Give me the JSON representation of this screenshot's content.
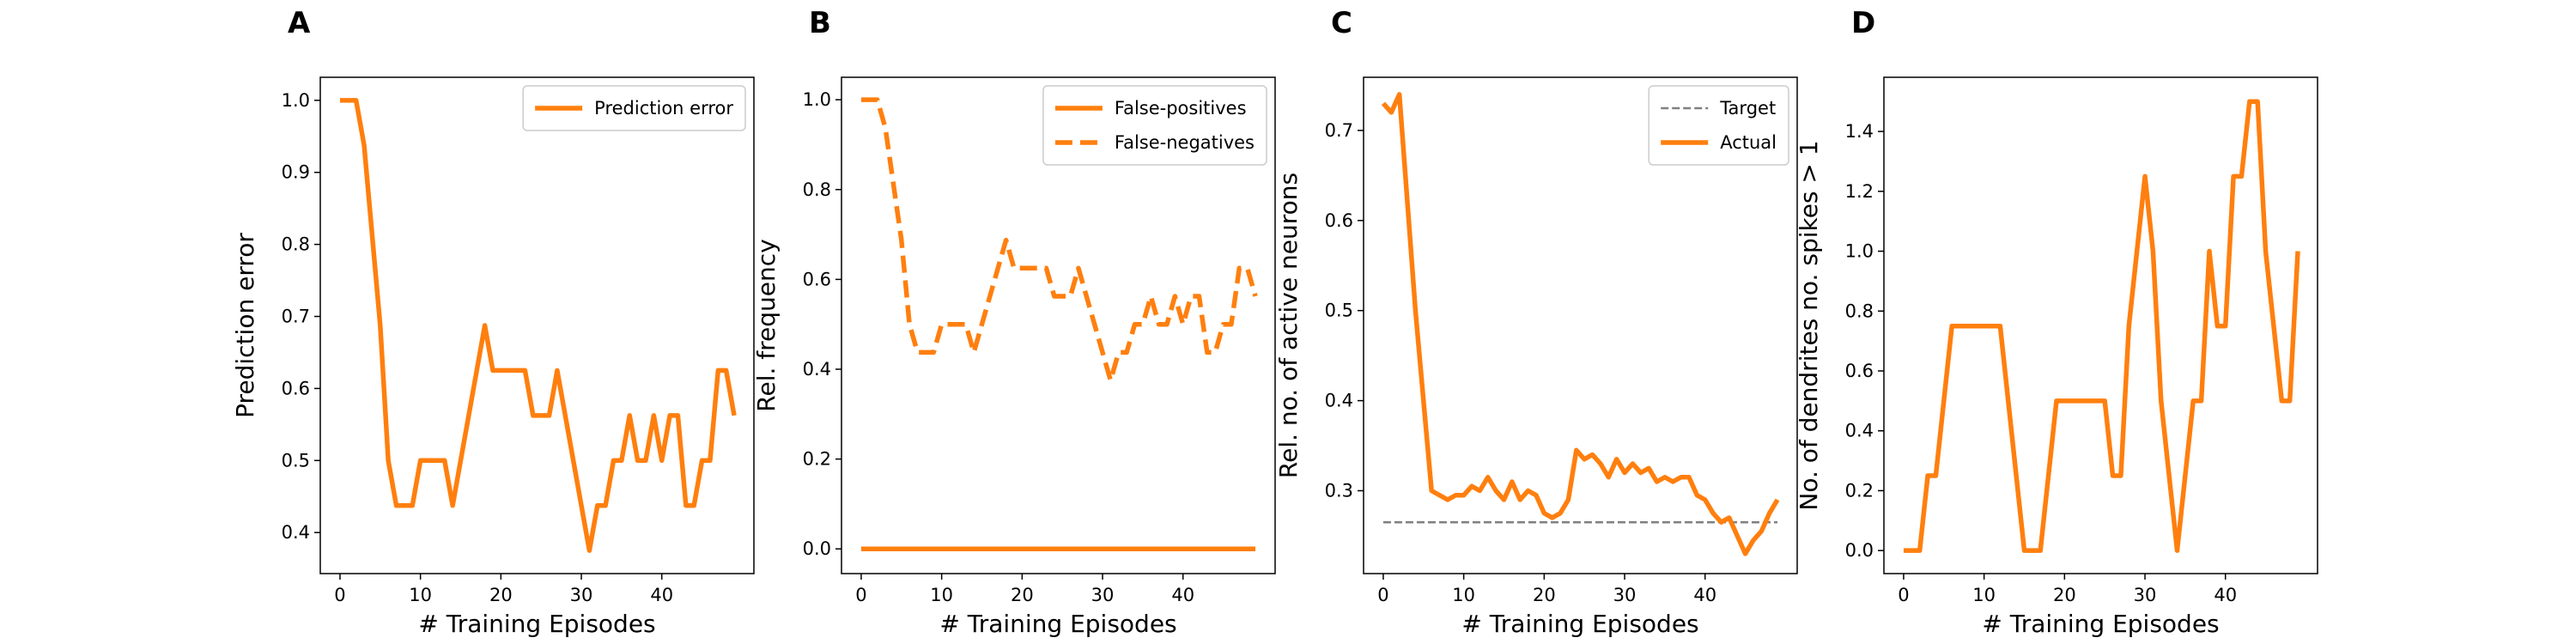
{
  "chart_data": [
    {
      "type": "line",
      "title": "A",
      "xlabel": "# Training Episodes",
      "ylabel": "Prediction error",
      "x": [
        0,
        1,
        2,
        3,
        4,
        5,
        6,
        7,
        8,
        9,
        10,
        11,
        12,
        13,
        14,
        15,
        16,
        17,
        18,
        19,
        20,
        21,
        22,
        23,
        24,
        25,
        26,
        27,
        28,
        29,
        30,
        31,
        32,
        33,
        34,
        35,
        36,
        37,
        38,
        39,
        40,
        41,
        42,
        43,
        44,
        45,
        46,
        47,
        48,
        49
      ],
      "series": [
        {
          "name": "Prediction error",
          "color": "#ff7f0e",
          "style": "solid",
          "values": [
            1.0,
            1.0,
            1.0,
            0.9375,
            0.8125,
            0.6875,
            0.5,
            0.4375,
            0.4375,
            0.4375,
            0.5,
            0.5,
            0.5,
            0.5,
            0.4375,
            0.5,
            0.5625,
            0.625,
            0.6875,
            0.625,
            0.625,
            0.625,
            0.625,
            0.625,
            0.5625,
            0.5625,
            0.5625,
            0.625,
            0.5625,
            0.5,
            0.4375,
            0.375,
            0.4375,
            0.4375,
            0.5,
            0.5,
            0.5625,
            0.5,
            0.5,
            0.5625,
            0.5,
            0.5625,
            0.5625,
            0.4375,
            0.4375,
            0.5,
            0.5,
            0.625,
            0.625,
            0.5625
          ]
        }
      ],
      "xlim": [
        -2.45,
        51.45
      ],
      "xticks": [
        0,
        10,
        20,
        30,
        40
      ],
      "ylim": [
        0.343,
        1.032
      ],
      "yticks": [
        0.4,
        0.5,
        0.6,
        0.7,
        0.8,
        0.9,
        {
          "value": 1.0,
          "label": "1.0"
        }
      ],
      "legend": "upper right"
    },
    {
      "type": "line",
      "title": "B",
      "xlabel": "# Training Episodes",
      "ylabel": "Rel. frequency",
      "x": [
        0,
        1,
        2,
        3,
        4,
        5,
        6,
        7,
        8,
        9,
        10,
        11,
        12,
        13,
        14,
        15,
        16,
        17,
        18,
        19,
        20,
        21,
        22,
        23,
        24,
        25,
        26,
        27,
        28,
        29,
        30,
        31,
        32,
        33,
        34,
        35,
        36,
        37,
        38,
        39,
        40,
        41,
        42,
        43,
        44,
        45,
        46,
        47,
        48,
        49
      ],
      "series": [
        {
          "name": "False-positives",
          "color": "#ff7f0e",
          "style": "solid",
          "values": [
            0,
            0,
            0,
            0,
            0,
            0,
            0,
            0,
            0,
            0,
            0,
            0,
            0,
            0,
            0,
            0,
            0,
            0,
            0,
            0,
            0,
            0,
            0,
            0,
            0,
            0,
            0,
            0,
            0,
            0,
            0,
            0,
            0,
            0,
            0,
            0,
            0,
            0,
            0,
            0,
            0,
            0,
            0,
            0,
            0,
            0,
            0,
            0,
            0,
            0
          ]
        },
        {
          "name": "False-negatives",
          "color": "#ff7f0e",
          "style": "dashed",
          "values": [
            1.0,
            1.0,
            1.0,
            0.9375,
            0.8125,
            0.6875,
            0.5,
            0.4375,
            0.4375,
            0.4375,
            0.5,
            0.5,
            0.5,
            0.5,
            0.4375,
            0.5,
            0.5625,
            0.625,
            0.6875,
            0.625,
            0.625,
            0.625,
            0.625,
            0.625,
            0.5625,
            0.5625,
            0.5625,
            0.625,
            0.5625,
            0.5,
            0.4375,
            0.375,
            0.4375,
            0.4375,
            0.5,
            0.5,
            0.5625,
            0.5,
            0.5,
            0.5625,
            0.5,
            0.5625,
            0.5625,
            0.4375,
            0.4375,
            0.5,
            0.5,
            0.625,
            0.625,
            0.5625
          ]
        }
      ],
      "xlim": [
        -2.45,
        51.45
      ],
      "xticks": [
        0,
        10,
        20,
        30,
        40
      ],
      "ylim": [
        -0.055,
        1.05
      ],
      "yticks": [
        {
          "value": 0,
          "label": "0.0"
        },
        0.2,
        0.4,
        0.6,
        0.8,
        {
          "value": 1.0,
          "label": "1.0"
        }
      ],
      "legend": "upper right"
    },
    {
      "type": "line",
      "title": "C",
      "xlabel": "# Training Episodes",
      "ylabel": "Rel. no. of active neurons",
      "x": [
        0,
        1,
        2,
        3,
        4,
        5,
        6,
        7,
        8,
        9,
        10,
        11,
        12,
        13,
        14,
        15,
        16,
        17,
        18,
        19,
        20,
        21,
        22,
        23,
        24,
        25,
        26,
        27,
        28,
        29,
        30,
        31,
        32,
        33,
        34,
        35,
        36,
        37,
        38,
        39,
        40,
        41,
        42,
        43,
        44,
        45,
        46,
        47,
        48,
        49
      ],
      "series": [
        {
          "name": "Target",
          "color": "#808080",
          "style": "dashed",
          "x": [
            0,
            49
          ],
          "values": [
            0.265,
            0.265
          ]
        },
        {
          "name": "Actual",
          "color": "#ff7f0e",
          "style": "solid",
          "values": [
            0.73,
            0.72,
            0.74,
            0.62,
            0.5,
            0.4,
            0.3,
            0.295,
            0.29,
            0.295,
            0.295,
            0.305,
            0.3,
            0.315,
            0.3,
            0.29,
            0.31,
            0.29,
            0.3,
            0.295,
            0.275,
            0.27,
            0.275,
            0.29,
            0.345,
            0.335,
            0.34,
            0.33,
            0.315,
            0.335,
            0.32,
            0.33,
            0.32,
            0.325,
            0.31,
            0.315,
            0.31,
            0.315,
            0.315,
            0.295,
            0.29,
            0.275,
            0.265,
            0.27,
            0.25,
            0.23,
            0.245,
            0.255,
            0.275,
            0.29
          ]
        }
      ],
      "xlim": [
        -2.45,
        51.45
      ],
      "xticks": [
        0,
        10,
        20,
        30,
        40
      ],
      "ylim": [
        0.208,
        0.759
      ],
      "yticks": [
        0.3,
        0.4,
        0.5,
        0.6,
        0.7
      ],
      "legend": "upper right"
    },
    {
      "type": "line",
      "title": "D",
      "xlabel": "# Training Episodes",
      "ylabel": "No. of dendrites no. spikes > 1",
      "x": [
        0,
        1,
        2,
        3,
        4,
        5,
        6,
        7,
        8,
        9,
        10,
        11,
        12,
        13,
        14,
        15,
        16,
        17,
        18,
        19,
        20,
        21,
        22,
        23,
        24,
        25,
        26,
        27,
        28,
        29,
        30,
        31,
        32,
        33,
        34,
        35,
        36,
        37,
        38,
        39,
        40,
        41,
        42,
        43,
        44,
        45,
        46,
        47,
        48,
        49
      ],
      "series": [
        {
          "color": "#ff7f0e",
          "style": "solid",
          "values": [
            0,
            0,
            0,
            0.25,
            0.25,
            0.5,
            0.75,
            0.75,
            0.75,
            0.75,
            0.75,
            0.75,
            0.75,
            0.5,
            0.25,
            0,
            0,
            0,
            0.25,
            0.5,
            0.5,
            0.5,
            0.5,
            0.5,
            0.5,
            0.5,
            0.25,
            0.25,
            0.75,
            1.0,
            1.25,
            1.0,
            0.5,
            0.25,
            0,
            0.25,
            0.5,
            0.5,
            1.0,
            0.75,
            0.75,
            1.25,
            1.25,
            1.5,
            1.5,
            1.0,
            0.75,
            0.5,
            0.5,
            1.0
          ]
        }
      ],
      "xlim": [
        -2.45,
        51.45
      ],
      "xticks": [
        0,
        10,
        20,
        30,
        40
      ],
      "ylim": [
        -0.077,
        1.581
      ],
      "yticks": [
        {
          "value": 0,
          "label": "0.0"
        },
        0.2,
        0.4,
        0.6,
        0.8,
        {
          "value": 1.0,
          "label": "1.0"
        },
        1.2,
        1.4
      ]
    }
  ]
}
